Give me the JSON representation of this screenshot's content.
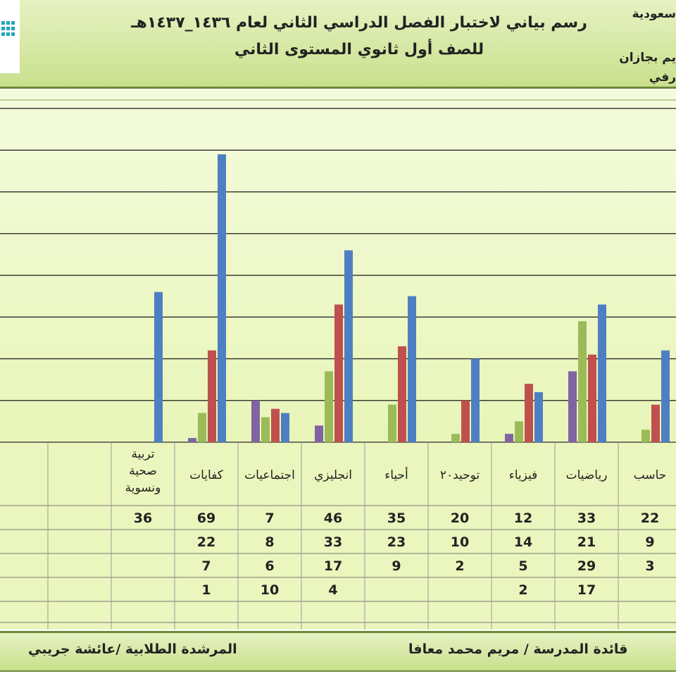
{
  "header": {
    "title_line1": "رسم بياني لاختبار الفصل الدراسي الثاني لعام ١٤٣٦_١٤٣٧هـ",
    "title_line2": "للصف أول ثانوي المستوى الثاني",
    "side_top": "سعودية",
    "side_mid": "يم بجازان",
    "side_bottom": "رفي"
  },
  "footer": {
    "principal": "قائدة المدرسة  /  مريم محمد معافا",
    "counselor": "المرشدة الطلابية /عائشة جريبي"
  },
  "colors": {
    "series_a": "#4f7fc3",
    "series_b": "#c0504d",
    "series_c": "#9bbb59",
    "series_d": "#8064a2",
    "chart_bg": "#e8f5b8",
    "grid": "#1a1a1a"
  },
  "chart_data": {
    "type": "bar",
    "categories": [
      "حاسب",
      "رياضيات",
      "فيزياء",
      "توحيد٢٠",
      "أحياء",
      "انجليزي",
      "اجتماعيات",
      "كفايات",
      "تربية صحية ونسوية",
      ""
    ],
    "series": [
      {
        "values": [
          22,
          33,
          12,
          20,
          35,
          46,
          7,
          69,
          36,
          null
        ]
      },
      {
        "values": [
          9,
          21,
          14,
          10,
          23,
          33,
          8,
          22,
          null,
          null
        ]
      },
      {
        "values": [
          3,
          29,
          5,
          2,
          9,
          17,
          6,
          7,
          null,
          null
        ]
      },
      {
        "values": [
          null,
          17,
          2,
          null,
          null,
          4,
          10,
          1,
          null,
          null
        ]
      }
    ],
    "ylim": [
      0,
      80
    ],
    "grid": true,
    "table_rows": [
      [
        "22",
        "33",
        "12",
        "20",
        "35",
        "46",
        "7",
        "69",
        "36",
        ""
      ],
      [
        "9",
        "21",
        "14",
        "10",
        "23",
        "33",
        "8",
        "22",
        "",
        ""
      ],
      [
        "3",
        "29",
        "5",
        "2",
        "9",
        "17",
        "6",
        "7",
        "",
        ""
      ],
      [
        "",
        "17",
        "2",
        "",
        "",
        "4",
        "10",
        "1",
        "",
        ""
      ]
    ]
  }
}
